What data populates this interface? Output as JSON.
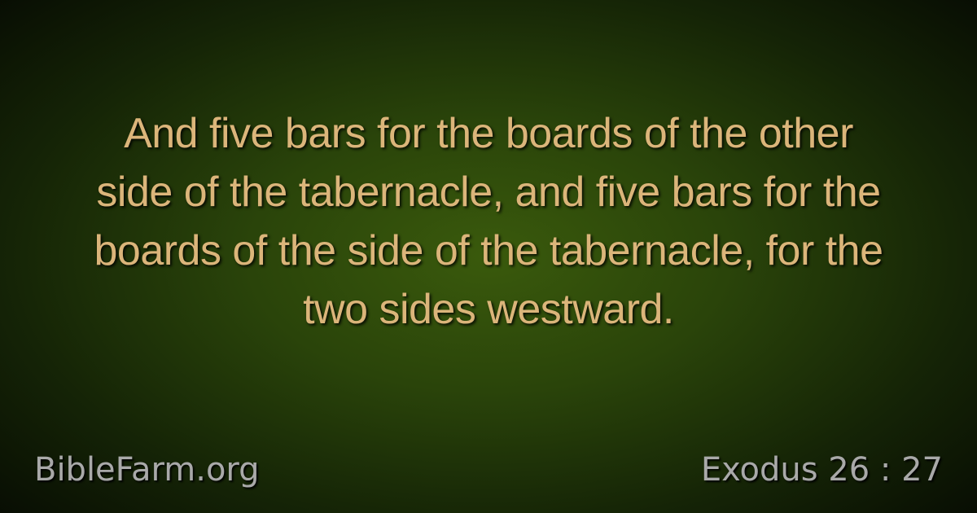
{
  "verse": {
    "lines": [
      "And five bars for the boards of the other",
      "side of the tabernacle, and five bars for the",
      "boards of the side of the tabernacle, for the",
      "two sides westward."
    ]
  },
  "footer": {
    "site": "BibleFarm.org",
    "reference": "Exodus 26 : 27"
  }
}
